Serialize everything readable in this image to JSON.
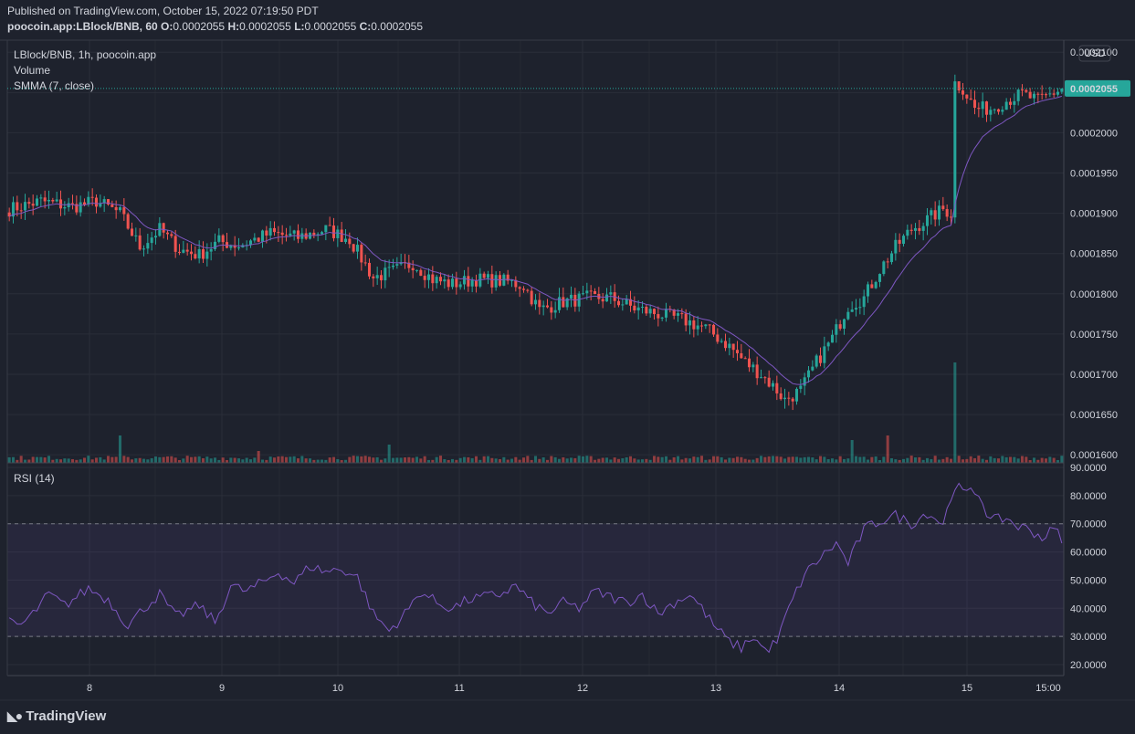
{
  "header": {
    "published": "Published on TradingView.com, October 15, 2022 07:19:50 PDT",
    "symbol": "poocoin.app:LBlock/BNB, 60",
    "o_label": "O:",
    "o_value": "0.0002055",
    "h_label": "H:",
    "h_value": "0.0002055",
    "l_label": "L:",
    "l_value": "0.0002055",
    "c_label": "C:",
    "c_value": "0.0002055"
  },
  "legend": {
    "title": "LBlock/BNB, 1h, poocoin.app",
    "volume": "Volume",
    "smma": "SMMA (7, close)",
    "rsi": "RSI (14)"
  },
  "currency_label": "USD",
  "last_price_label": "0.0002055",
  "footer": {
    "brand": "TradingView"
  },
  "colors": {
    "background": "#1e222d",
    "grid": "#2a2e39",
    "up": "#26a69a",
    "down": "#ef5350",
    "smma": "#7e57c2",
    "rsi": "#7e57c2",
    "rsi_band": "rgba(126,87,194,0.1)",
    "last_price": "#26a69a"
  },
  "chart_data": [
    {
      "type": "candlestick",
      "title": "LBlock/BNB, 1h, poocoin.app",
      "price_ticks": [
        "0.0002100",
        "0.0002050",
        "0.0002000",
        "0.0001950",
        "0.0001900",
        "0.0001850",
        "0.0001800",
        "0.0001750",
        "0.0001700",
        "0.0001650",
        "0.0001600"
      ],
      "x_ticks": [
        "8",
        "9",
        "10",
        "11",
        "12",
        "13",
        "14",
        "15",
        "15:00"
      ],
      "grid": true,
      "last_price": 0.0002055,
      "candle_anchors_close": [
        [
          0,
          0.0001905
        ],
        [
          8,
          0.0001915
        ],
        [
          16,
          0.0001908
        ],
        [
          22,
          0.0001915
        ],
        [
          28,
          0.00019
        ],
        [
          33,
          0.0001858
        ],
        [
          38,
          0.000188
        ],
        [
          43,
          0.0001855
        ],
        [
          48,
          0.0001848
        ],
        [
          53,
          0.0001865
        ],
        [
          58,
          0.000186
        ],
        [
          66,
          0.0001875
        ],
        [
          73,
          0.000187
        ],
        [
          80,
          0.000188
        ],
        [
          86,
          0.0001868
        ],
        [
          92,
          0.000182
        ],
        [
          97,
          0.0001828
        ],
        [
          102,
          0.0001838
        ],
        [
          107,
          0.0001818
        ],
        [
          112,
          0.0001812
        ],
        [
          118,
          0.0001818
        ],
        [
          126,
          0.0001815
        ],
        [
          130,
          0.000181
        ],
        [
          134,
          0.000178
        ],
        [
          140,
          0.000179
        ],
        [
          146,
          0.0001795
        ],
        [
          152,
          0.0001795
        ],
        [
          158,
          0.0001782
        ],
        [
          164,
          0.0001775
        ],
        [
          170,
          0.0001768
        ],
        [
          176,
          0.0001757
        ],
        [
          182,
          0.0001735
        ],
        [
          186,
          0.0001715
        ],
        [
          190,
          0.00017
        ],
        [
          194,
          0.000168
        ],
        [
          196,
          0.0001668
        ],
        [
          200,
          0.000168
        ],
        [
          204,
          0.0001715
        ],
        [
          208,
          0.0001745
        ],
        [
          212,
          0.0001785
        ],
        [
          216,
          0.0001795
        ],
        [
          220,
          0.000183
        ],
        [
          224,
          0.0001858
        ],
        [
          228,
          0.000188
        ],
        [
          232,
          0.0001892
        ],
        [
          236,
          0.0001905
        ],
        [
          238,
          0.00019
        ],
        [
          239,
          0.0002062
        ],
        [
          241,
          0.0002055
        ],
        [
          244,
          0.000203
        ],
        [
          248,
          0.000203
        ],
        [
          252,
          0.000204
        ],
        [
          256,
          0.0002048
        ],
        [
          260,
          0.000204
        ],
        [
          264,
          0.000205
        ],
        [
          266,
          0.0002055
        ]
      ],
      "volume_spikes": [
        [
          28,
          3
        ],
        [
          63,
          1.3
        ],
        [
          96,
          2
        ],
        [
          239,
          11
        ],
        [
          222,
          3
        ],
        [
          213,
          2.5
        ]
      ]
    },
    {
      "type": "line",
      "series": [
        {
          "name": "SMMA (7, close)"
        }
      ]
    },
    {
      "type": "line",
      "title": "RSI (14)",
      "y_ticks": [
        "90.0000",
        "80.0000",
        "70.0000",
        "60.0000",
        "50.0000",
        "40.0000",
        "30.0000",
        "20.0000"
      ],
      "bands": [
        30,
        70
      ],
      "ylim": [
        20,
        90
      ],
      "rsi_anchors": [
        [
          0,
          35
        ],
        [
          3,
          34
        ],
        [
          6,
          38
        ],
        [
          10,
          45
        ],
        [
          14,
          41
        ],
        [
          20,
          47
        ],
        [
          25,
          43
        ],
        [
          30,
          34
        ],
        [
          34,
          40
        ],
        [
          38,
          45
        ],
        [
          42,
          37
        ],
        [
          48,
          41
        ],
        [
          52,
          35
        ],
        [
          56,
          48
        ],
        [
          60,
          46
        ],
        [
          65,
          50
        ],
        [
          68,
          53
        ],
        [
          72,
          49
        ],
        [
          76,
          55
        ],
        [
          80,
          53
        ],
        [
          84,
          54
        ],
        [
          88,
          51
        ],
        [
          92,
          38
        ],
        [
          96,
          32
        ],
        [
          100,
          38
        ],
        [
          104,
          46
        ],
        [
          108,
          42
        ],
        [
          112,
          40
        ],
        [
          116,
          43
        ],
        [
          120,
          44
        ],
        [
          124,
          45
        ],
        [
          128,
          48
        ],
        [
          132,
          42
        ],
        [
          136,
          38
        ],
        [
          140,
          42
        ],
        [
          144,
          40
        ],
        [
          148,
          46
        ],
        [
          152,
          44
        ],
        [
          156,
          42
        ],
        [
          160,
          45
        ],
        [
          164,
          38
        ],
        [
          168,
          42
        ],
        [
          172,
          45
        ],
        [
          175,
          40
        ],
        [
          178,
          34
        ],
        [
          182,
          28
        ],
        [
          185,
          26
        ],
        [
          188,
          30
        ],
        [
          191,
          25
        ],
        [
          194,
          28
        ],
        [
          197,
          40
        ],
        [
          201,
          52
        ],
        [
          205,
          58
        ],
        [
          209,
          63
        ],
        [
          212,
          56
        ],
        [
          216,
          68
        ],
        [
          220,
          71
        ],
        [
          224,
          73
        ],
        [
          228,
          70
        ],
        [
          232,
          74
        ],
        [
          236,
          70
        ],
        [
          239,
          84
        ],
        [
          241,
          81
        ],
        [
          245,
          81
        ],
        [
          248,
          71
        ],
        [
          252,
          72
        ],
        [
          255,
          69
        ],
        [
          258,
          68
        ],
        [
          261,
          65
        ],
        [
          264,
          68
        ],
        [
          266,
          65
        ]
      ]
    }
  ]
}
